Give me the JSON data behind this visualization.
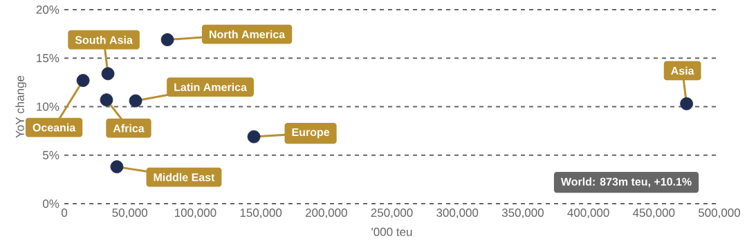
{
  "chart_data": {
    "type": "scatter",
    "xlabel": "'000 teu",
    "ylabel": "YoY change",
    "x": [
      14300,
      33300,
      32200,
      78700,
      54400,
      144700,
      40100,
      475000
    ],
    "values": [
      12.7,
      13.4,
      10.7,
      16.9,
      10.6,
      6.9,
      3.8,
      10.3
    ],
    "color": "#1f2d52",
    "marker": "circle",
    "grid": "y",
    "xlim": [
      0,
      500000
    ],
    "ylim": [
      0,
      20
    ],
    "xticks": [
      0,
      {
        "value": 50000,
        "label": "50,000"
      },
      {
        "value": 100000,
        "label": "100,000"
      },
      {
        "value": 150000,
        "label": "150,000"
      },
      {
        "value": 200000,
        "label": "200,000"
      },
      {
        "value": 250000,
        "label": "250,000"
      },
      {
        "value": 300000,
        "label": "300,000"
      },
      {
        "value": 350000,
        "label": "350,000"
      },
      {
        "value": 400000,
        "label": "400,000"
      },
      {
        "value": 450000,
        "label": "450,000"
      },
      {
        "value": 500000,
        "label": "500,000"
      }
    ],
    "yticks": [
      {
        "value": 0,
        "label": "0%"
      },
      {
        "value": 5,
        "label": "5%"
      },
      {
        "value": 10,
        "label": "10%"
      },
      {
        "value": 15,
        "label": "15%"
      },
      {
        "value": 20,
        "label": "20%"
      }
    ],
    "annotations": [
      {
        "text": "Oceania",
        "x": 14300,
        "y": 12.7
      },
      {
        "text": "South Asia",
        "x": 33300,
        "y": 13.4
      },
      {
        "text": "Africa",
        "x": 32200,
        "y": 10.7
      },
      {
        "text": "North America",
        "x": 78700,
        "y": 16.9
      },
      {
        "text": "Latin America",
        "x": 54400,
        "y": 10.6
      },
      {
        "text": "Europe",
        "x": 144700,
        "y": 6.9
      },
      {
        "text": "Middle East",
        "x": 40100,
        "y": 3.8
      },
      {
        "text": "Asia",
        "x": 475000,
        "y": 10.3
      },
      "World: 873m teu, +10.1%"
    ]
  }
}
